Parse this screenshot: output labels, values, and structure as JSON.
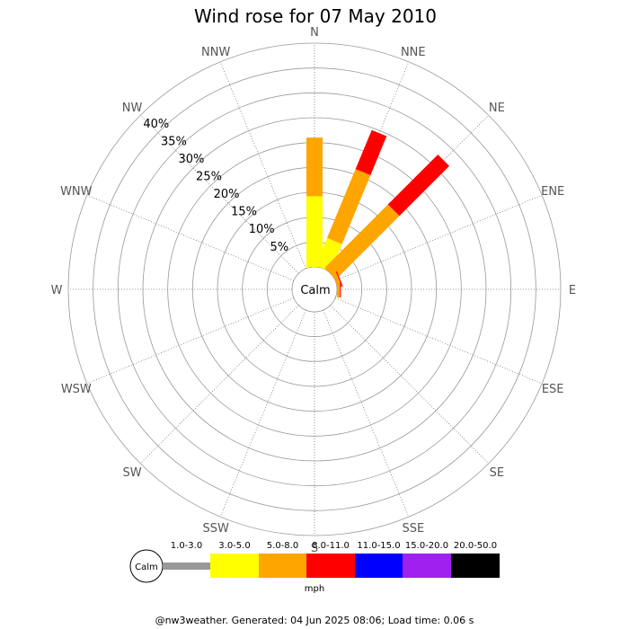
{
  "chart_data": {
    "type": "wind-rose",
    "title": "Wind rose for 07 May 2010",
    "center_label": "Calm",
    "directions": [
      "N",
      "NNE",
      "NE",
      "ENE",
      "E",
      "ESE",
      "SE",
      "SSE",
      "S",
      "SSW",
      "SW",
      "WSW",
      "W",
      "WNW",
      "NW",
      "NNW"
    ],
    "radial_ticks": [
      "5%",
      "10%",
      "15%",
      "20%",
      "25%",
      "30%",
      "35%",
      "40%"
    ],
    "radial_tick_values": [
      5,
      10,
      15,
      20,
      25,
      30,
      35,
      40
    ],
    "radial_max": 45,
    "speed_bins": [
      "1.0-3.0",
      "3.0-5.0",
      "5.0-8.0",
      "8.0-11.0",
      "11.0-15.0",
      "15.0-20.0",
      "20.0-50.0"
    ],
    "bin_colors": [
      "#999999",
      "#ffff00",
      "#ffa500",
      "#ff0000",
      "#0000ff",
      "#a020f0",
      "#000000"
    ],
    "units": "mph",
    "series": [
      {
        "direction": "N",
        "segments": [
          0,
          14.2,
          11.8,
          0,
          0,
          0,
          0
        ]
      },
      {
        "direction": "NNE",
        "segments": [
          0,
          6.0,
          15.0,
          8.5,
          0,
          0,
          0
        ]
      },
      {
        "direction": "NE",
        "segments": [
          0,
          0,
          18.0,
          14.2,
          0,
          0,
          0
        ]
      },
      {
        "direction": "ENE",
        "segments": [
          0,
          0,
          0.8,
          0.2,
          0,
          0,
          0
        ]
      },
      {
        "direction": "E",
        "segments": [
          0,
          0,
          0.6,
          0.2,
          0,
          0,
          0
        ]
      }
    ],
    "legend_calm_label": "Calm",
    "legend_placement": "bottom"
  },
  "footer": "@nw3weather. Generated: 04 Jun 2025 08:06; Load time: 0.06 s"
}
